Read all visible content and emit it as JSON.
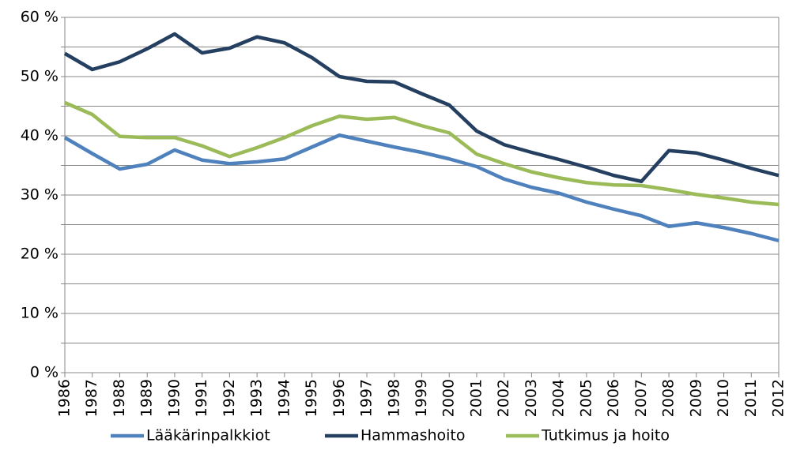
{
  "chart_data": {
    "type": "line",
    "x": [
      1986,
      1987,
      1988,
      1989,
      1990,
      1991,
      1992,
      1993,
      1994,
      1995,
      1996,
      1997,
      1998,
      1999,
      2000,
      2001,
      2002,
      2003,
      2004,
      2005,
      2006,
      2007,
      2008,
      2009,
      2010,
      2011,
      2012
    ],
    "xlim": [
      1986,
      2012
    ],
    "ylim": [
      0,
      60
    ],
    "yticks": [
      {
        "value": 0,
        "label": "0 %"
      },
      {
        "value": 10,
        "label": "10 %"
      },
      {
        "value": 20,
        "label": "20 %"
      },
      {
        "value": 30,
        "label": "30 %"
      },
      {
        "value": 40,
        "label": "40 %"
      },
      {
        "value": 50,
        "label": "50 %"
      },
      {
        "value": 60,
        "label": "60 %"
      }
    ],
    "minor_yticks": [
      5,
      15,
      25,
      35,
      45,
      55
    ],
    "grid": true,
    "legend": "bottom",
    "series": [
      {
        "name": "Lääkärinpalkkiot",
        "color": "#4f81bd",
        "values": [
          39.7,
          37.0,
          34.4,
          35.2,
          37.6,
          35.9,
          35.3,
          35.6,
          36.1,
          38.1,
          40.1,
          39.1,
          38.1,
          37.2,
          36.1,
          34.8,
          32.7,
          31.3,
          30.3,
          28.8,
          27.6,
          26.5,
          24.7,
          25.3,
          24.5,
          23.5,
          22.3
        ]
      },
      {
        "name": "Hammashoito",
        "color": "#243f60",
        "values": [
          53.9,
          51.2,
          52.5,
          54.7,
          57.2,
          54.0,
          54.8,
          56.7,
          55.7,
          53.2,
          50.0,
          49.2,
          49.1,
          47.1,
          45.2,
          40.8,
          38.5,
          37.2,
          36.0,
          34.7,
          33.3,
          32.3,
          37.5,
          37.1,
          35.9,
          34.5,
          33.3
        ]
      },
      {
        "name": "Tutkimus ja hoito",
        "color": "#9bbb59",
        "values": [
          45.6,
          43.6,
          39.9,
          39.7,
          39.7,
          38.3,
          36.5,
          38.0,
          39.7,
          41.7,
          43.3,
          42.8,
          43.1,
          41.7,
          40.5,
          36.9,
          35.3,
          33.9,
          32.9,
          32.1,
          31.7,
          31.6,
          30.9,
          30.1,
          29.5,
          28.8,
          28.4
        ]
      }
    ]
  }
}
